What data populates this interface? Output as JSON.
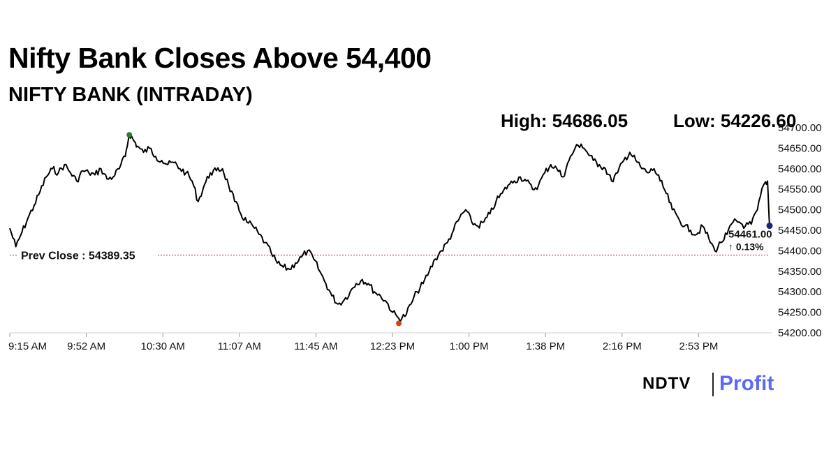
{
  "headline": "Nifty Bank Closes Above 54,400",
  "subtitle": "NIFTY BANK (INTRADAY)",
  "stats": {
    "high": "High: 54686.05",
    "low": "Low: 54226.60"
  },
  "logo": {
    "ndtv": "NDTV",
    "profit": "Profit"
  },
  "colors": {
    "line": "#000000",
    "high_marker": "#2e7d32",
    "low_marker": "#d84315",
    "last_marker": "#1a237e",
    "prev_close_line": "#b71c1c",
    "change_up": "#1b8a1b",
    "logo_profit": "#5b6cf0"
  },
  "chart_data": {
    "type": "line",
    "title": "NIFTY BANK (INTRADAY)",
    "x_tick_labels": [
      "9:15 AM",
      "9:52 AM",
      "10:30 AM",
      "11:07 AM",
      "11:45 AM",
      "12:23 PM",
      "1:00 PM",
      "1:38 PM",
      "2:16 PM",
      "2:53 PM"
    ],
    "y_tick_labels": [
      "54700.00",
      "54650.00",
      "54600.00",
      "54550.00",
      "54500.00",
      "54450.00",
      "54400.00",
      "54350.00",
      "54300.00",
      "54250.00",
      "54200.00"
    ],
    "ylim": [
      54200,
      54700
    ],
    "prev_close": 54389.35,
    "prev_close_label": "Prev Close : 54389.35",
    "last_value_label": "54461.00",
    "change_label": "↑ 0.13%",
    "high": 54686.05,
    "low": 54226.6,
    "series": [
      {
        "time": [
          "9:15",
          "9:18",
          "9:21",
          "9:24",
          "9:27",
          "9:30",
          "9:33",
          "9:36",
          "9:39",
          "9:42",
          "9:45",
          "9:48",
          "9:51",
          "9:54",
          "9:57",
          "10:00",
          "10:03",
          "10:06",
          "10:09",
          "10:12",
          "10:14",
          "10:16",
          "10:18",
          "10:21",
          "10:24",
          "10:27",
          "10:30",
          "10:33",
          "10:36",
          "10:39",
          "10:42",
          "10:45",
          "10:48",
          "10:51",
          "10:54",
          "10:57",
          "11:00",
          "11:03",
          "11:06",
          "11:09",
          "11:12",
          "11:15",
          "11:18",
          "11:21",
          "11:24",
          "11:27",
          "11:30",
          "11:33",
          "11:36",
          "11:39",
          "11:42",
          "11:45",
          "11:48",
          "11:51",
          "11:54",
          "11:57",
          "12:00",
          "12:03",
          "12:06",
          "12:09",
          "12:12",
          "12:15",
          "12:18",
          "12:21",
          "12:24",
          "12:27",
          "12:30",
          "12:33",
          "12:36",
          "12:39",
          "12:42",
          "12:45",
          "12:48",
          "12:51",
          "12:54",
          "12:57",
          "13:00",
          "13:03",
          "13:06",
          "13:09",
          "13:12",
          "13:15",
          "13:18",
          "13:21",
          "13:24",
          "13:27",
          "13:30",
          "13:33",
          "13:36",
          "13:39",
          "13:42",
          "13:45",
          "13:48",
          "13:51",
          "13:54",
          "13:57",
          "14:00",
          "14:03",
          "14:06",
          "14:09",
          "14:12",
          "14:15",
          "14:18",
          "14:21",
          "14:24",
          "14:27",
          "14:30",
          "14:33",
          "14:36",
          "14:39",
          "14:42",
          "14:45",
          "14:48",
          "14:51",
          "14:54",
          "14:57",
          "15:00",
          "15:03",
          "15:06",
          "15:09",
          "15:12",
          "15:15",
          "15:18",
          "15:21",
          "15:24",
          "15:27",
          "15:29",
          "15:30"
        ],
        "values": [
          54455,
          54410,
          54445,
          54480,
          54510,
          54545,
          54580,
          54600,
          54590,
          54610,
          54590,
          54570,
          54595,
          54590,
          54585,
          54600,
          54575,
          54580,
          54600,
          54630,
          54686,
          54670,
          54655,
          54640,
          54650,
          54630,
          54620,
          54610,
          54615,
          54600,
          54590,
          54570,
          54520,
          54560,
          54590,
          54595,
          54600,
          54560,
          54520,
          54490,
          54470,
          54460,
          54440,
          54420,
          54395,
          54370,
          54360,
          54355,
          54370,
          54385,
          54400,
          54380,
          54350,
          54320,
          54290,
          54270,
          54280,
          54300,
          54320,
          54330,
          54320,
          54300,
          54290,
          54275,
          54250,
          54235,
          54240,
          54270,
          54300,
          54320,
          54350,
          54380,
          54400,
          54420,
          54450,
          54480,
          54500,
          54470,
          54460,
          54470,
          54490,
          54520,
          54540,
          54560,
          54570,
          54580,
          54570,
          54550,
          54560,
          54590,
          54610,
          54600,
          54580,
          54620,
          54650,
          54660,
          54640,
          54620,
          54610,
          54600,
          54570,
          54590,
          54620,
          54640,
          54620,
          54600,
          54590,
          54600,
          54570,
          54540,
          54500,
          54480,
          54460,
          54450,
          54440,
          54460,
          54430,
          54400,
          54420,
          54440,
          54470,
          54470,
          54460,
          54465,
          54500,
          54560,
          54570,
          54461
        ]
      }
    ]
  }
}
